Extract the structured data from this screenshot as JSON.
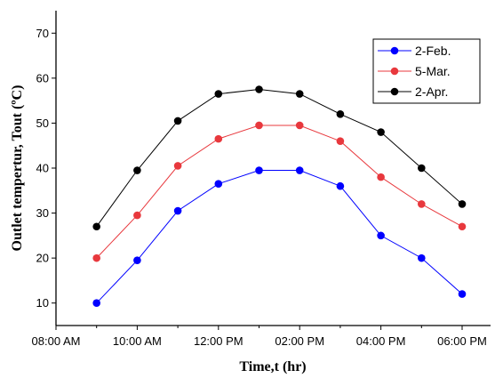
{
  "chart_data": {
    "type": "line",
    "title": "",
    "xlabel": "Time,t (hr)",
    "ylabel": "Outlet tempertur, Tout (ºC)",
    "x_tick_labels": [
      "08:00 AM",
      "10:00 AM",
      "12:00 PM",
      "02:00 PM",
      "04:00 PM",
      "06:00 PM"
    ],
    "x_tick_hours": [
      8,
      10,
      12,
      14,
      16,
      18
    ],
    "xlim": [
      8,
      18.7
    ],
    "y_ticks": [
      10,
      20,
      30,
      40,
      50,
      60,
      70
    ],
    "ylim": [
      5,
      75
    ],
    "grid": false,
    "legend_position": "top-right",
    "x": [
      9,
      10,
      11,
      12,
      13,
      14,
      15,
      16,
      17,
      18
    ],
    "series": [
      {
        "name": "2-Feb.",
        "color": "#0000ff",
        "values": [
          10,
          19.5,
          30.5,
          36.5,
          39.5,
          39.5,
          36,
          25,
          20,
          12
        ]
      },
      {
        "name": "5-Mar.",
        "color": "#e8383d",
        "values": [
          20,
          29.5,
          40.5,
          46.5,
          49.5,
          49.5,
          46,
          38,
          32,
          27
        ]
      },
      {
        "name": "2-Apr.",
        "color": "#000000",
        "values": [
          27,
          39.5,
          50.5,
          56.5,
          57.5,
          56.5,
          52,
          48,
          40,
          32
        ]
      }
    ]
  }
}
